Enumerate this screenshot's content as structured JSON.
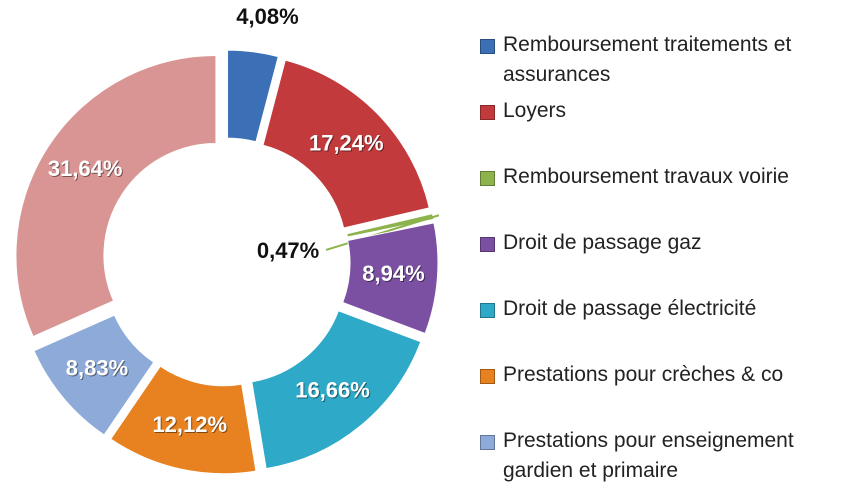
{
  "chart_data": {
    "type": "donut",
    "categories": [
      "Remboursement traitements et assurances",
      "Loyers",
      "Remboursement travaux voirie",
      "Droit de passage gaz",
      "Droit de passage électricité",
      "Prestations pour crèches & co",
      "Prestations pour enseignement gardien et primaire",
      null
    ],
    "values": [
      4.08,
      17.24,
      0.47,
      8.94,
      16.66,
      12.12,
      8.83,
      31.64
    ],
    "value_labels": [
      "4,08%",
      "17,24%",
      "0,47%",
      "8,94%",
      "16,66%",
      "12,12%",
      "8,83%",
      "31,64%"
    ],
    "colors": [
      "#3b6fb6",
      "#c23a3c",
      "#8db34c",
      "#7b4fa2",
      "#2ea9c7",
      "#e8811f",
      "#8eaad8",
      "#d99594"
    ],
    "legend": "right"
  }
}
